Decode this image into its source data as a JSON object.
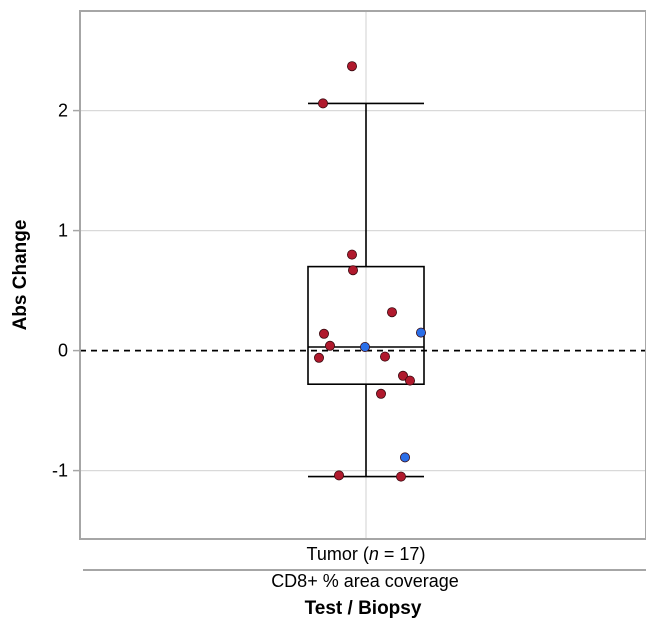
{
  "chart_data": {
    "type": "box",
    "ylabel": "Abs Change",
    "xlabel": "Test / Biopsy",
    "group_label": "CD8+ % area coverage",
    "category": {
      "label_prefix": "Tumor (",
      "label_n_italic": "n",
      "label_suffix": " = 17)"
    },
    "ylim": [
      -1.57,
      2.83
    ],
    "yticks": [
      -1,
      0,
      1,
      2
    ],
    "ytick_labels": [
      "-1",
      "0",
      "1",
      "2"
    ],
    "grid": true,
    "reference_line": 0,
    "box": {
      "q1": -0.28,
      "median": 0.03,
      "q3": 0.7,
      "whisker_low": -1.05,
      "whisker_high": 2.06
    },
    "points": [
      {
        "jitter": -0.14,
        "y": 2.37,
        "color": "red"
      },
      {
        "jitter": -0.43,
        "y": 2.06,
        "color": "red"
      },
      {
        "jitter": -0.14,
        "y": 0.8,
        "color": "red"
      },
      {
        "jitter": -0.13,
        "y": 0.67,
        "color": "red"
      },
      {
        "jitter": 0.26,
        "y": 0.32,
        "color": "red"
      },
      {
        "jitter": 0.55,
        "y": 0.15,
        "color": "blue"
      },
      {
        "jitter": -0.42,
        "y": 0.14,
        "color": "red"
      },
      {
        "jitter": -0.36,
        "y": 0.04,
        "color": "red"
      },
      {
        "jitter": -0.01,
        "y": 0.03,
        "color": "blue"
      },
      {
        "jitter": -0.47,
        "y": -0.06,
        "color": "red"
      },
      {
        "jitter": 0.19,
        "y": -0.05,
        "color": "red"
      },
      {
        "jitter": 0.37,
        "y": -0.21,
        "color": "red"
      },
      {
        "jitter": 0.44,
        "y": -0.25,
        "color": "red"
      },
      {
        "jitter": 0.15,
        "y": -0.36,
        "color": "red"
      },
      {
        "jitter": 0.39,
        "y": -0.89,
        "color": "blue"
      },
      {
        "jitter": -0.27,
        "y": -1.04,
        "color": "red"
      },
      {
        "jitter": 0.35,
        "y": -1.05,
        "color": "red"
      }
    ]
  },
  "colors": {
    "red": "#b0192d",
    "blue": "#2a6ee8",
    "grid": "#d9d9d9",
    "frame": "#a6a6a6"
  }
}
